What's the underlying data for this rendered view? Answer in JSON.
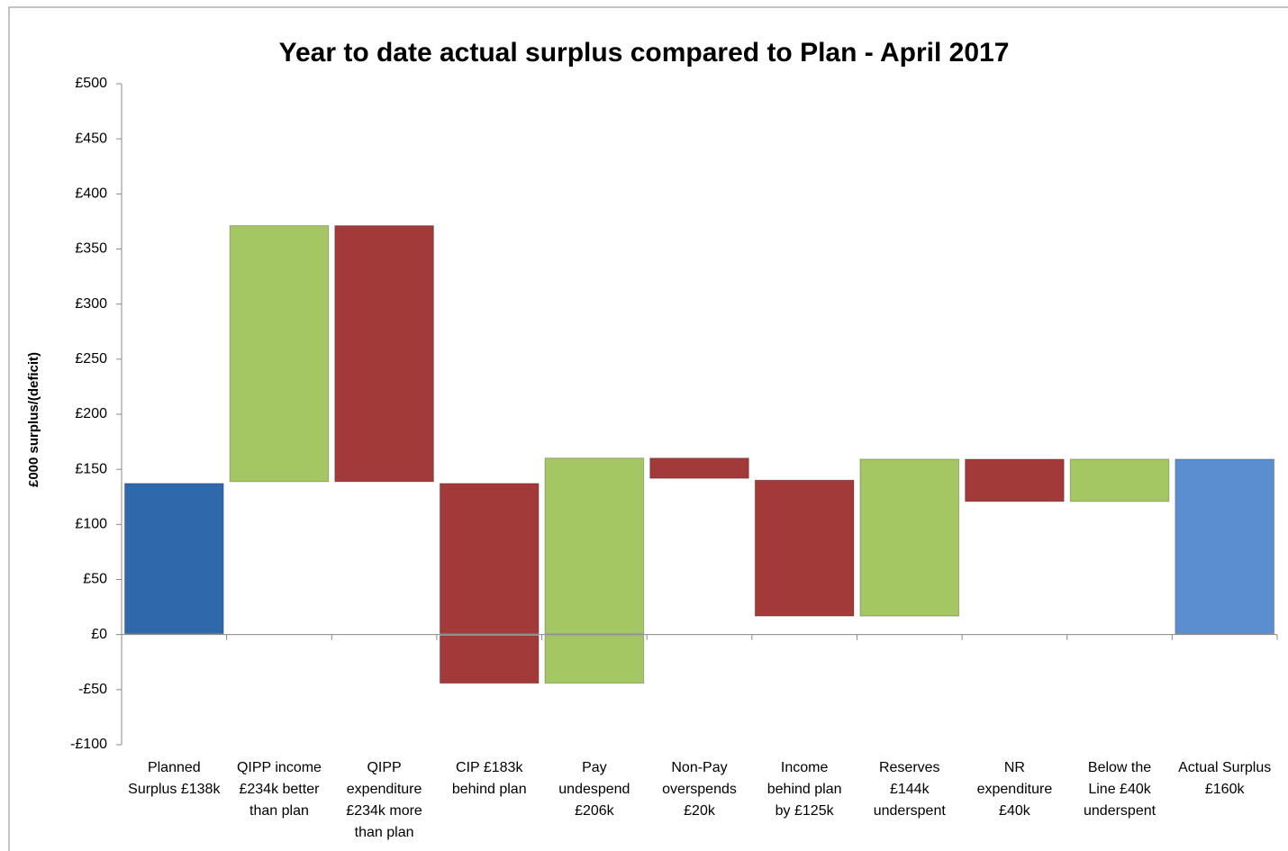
{
  "chart_data": {
    "type": "waterfall",
    "title": "Year to date actual surplus compared to Plan - April 2017",
    "y_label": "£000 surplus/(deficit)",
    "categories": [
      [
        "Planned",
        "Surplus £138k"
      ],
      [
        "QIPP income",
        "£234k better",
        "than plan"
      ],
      [
        "QIPP",
        "expenditure",
        "£234k more",
        "than plan"
      ],
      [
        "CIP £183k",
        "behind plan"
      ],
      [
        "Pay",
        "undespend",
        "£206k"
      ],
      [
        "Non-Pay",
        "overspends",
        "£20k"
      ],
      [
        "Income",
        "behind plan",
        "by £125k"
      ],
      [
        "Reserves",
        "£144k",
        "underspent"
      ],
      [
        "NR",
        "expenditure",
        "£40k"
      ],
      [
        "Below the",
        "Line £40k",
        "underspent"
      ],
      [
        "Actual Surplus",
        "£160k"
      ]
    ],
    "values": [
      138,
      234,
      -234,
      -183,
      206,
      -20,
      -125,
      144,
      -40,
      40,
      160
    ],
    "measure": [
      "total",
      "relative",
      "relative",
      "relative",
      "relative",
      "relative",
      "relative",
      "relative",
      "relative",
      "relative",
      "total"
    ],
    "colors": [
      "#2f68ab",
      "#a4c663",
      "#a13a38",
      "#a13a38",
      "#a4c663",
      "#a13a38",
      "#a13a38",
      "#a4c663",
      "#a13a38",
      "#a4c663",
      "#5a8ed0"
    ],
    "ylim": [
      -100,
      500
    ],
    "yticks": [
      {
        "value": -100,
        "label": "-£100"
      },
      {
        "value": -50,
        "label": "-£50"
      },
      {
        "value": 0,
        "label": "£0"
      },
      {
        "value": 50,
        "label": "£50"
      },
      {
        "value": 100,
        "label": "£100"
      },
      {
        "value": 150,
        "label": "£150"
      },
      {
        "value": 200,
        "label": "£200"
      },
      {
        "value": 250,
        "label": "£250"
      },
      {
        "value": 300,
        "label": "£300"
      },
      {
        "value": 350,
        "label": "£350"
      },
      {
        "value": 400,
        "label": "£400"
      },
      {
        "value": 450,
        "label": "£450"
      },
      {
        "value": 500,
        "label": "£500"
      }
    ],
    "grid": false
  }
}
